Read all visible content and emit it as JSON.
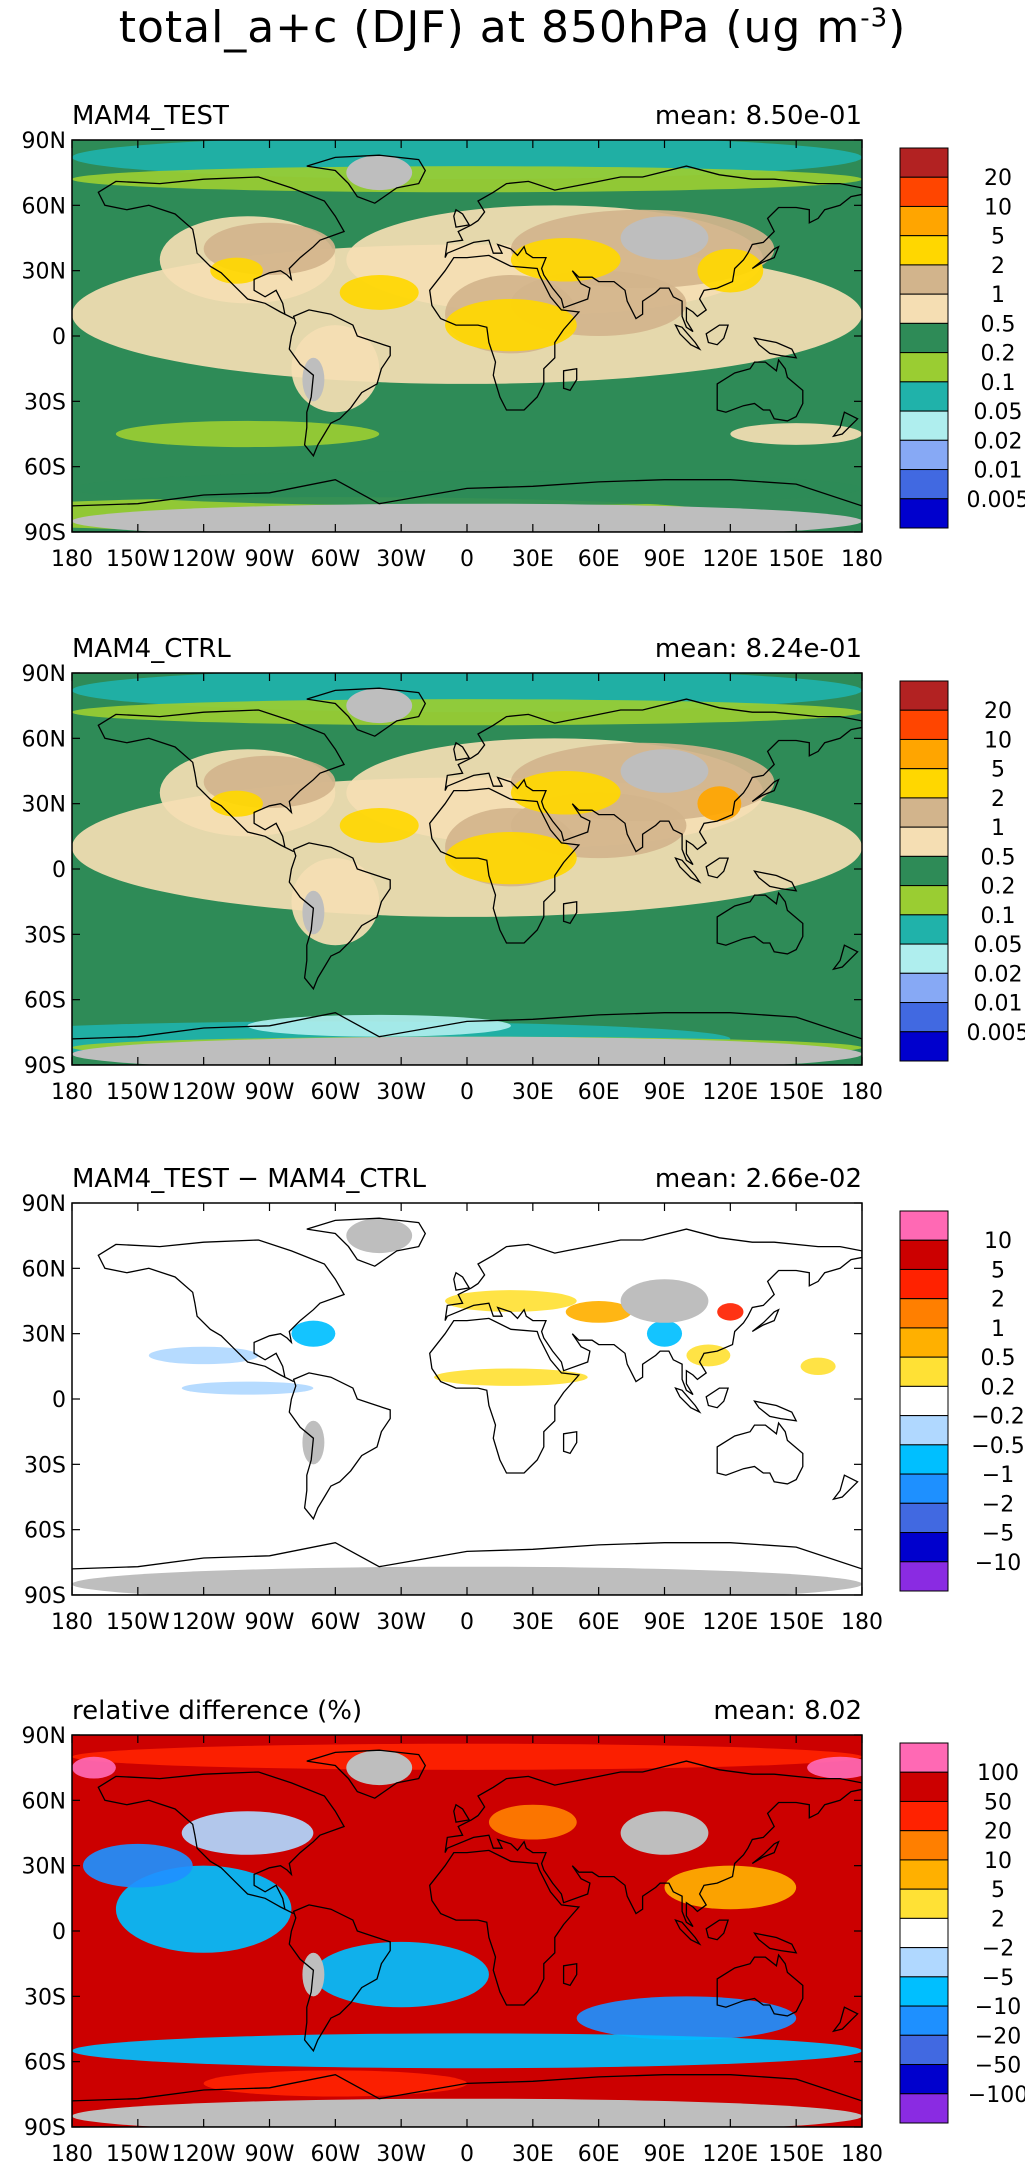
{
  "title": {
    "main": "total_a+c (DJF) at 850hPa (ug m",
    "units_exp": "-3",
    "close": ")"
  },
  "colors": {
    "land_mask": "#bebebe",
    "ocean_default": "#2e8b57",
    "coast": "#000000"
  },
  "chart_data": [
    {
      "type": "heatmap",
      "title": "MAM4_TEST",
      "mean_text": "mean: 8.50e-01",
      "lat_ticks": [
        "90N",
        "60N",
        "30N",
        "0",
        "30S",
        "60S",
        "90S"
      ],
      "lon_ticks": [
        "180",
        "150W",
        "120W",
        "90W",
        "60W",
        "30W",
        "0",
        "30E",
        "60E",
        "90E",
        "120E",
        "150E",
        "180"
      ],
      "colorbar": {
        "labels": [
          "20",
          "10",
          "5",
          "2",
          "1",
          "0.5",
          "0.2",
          "0.1",
          "0.05",
          "0.02",
          "0.01",
          "0.005"
        ],
        "colors": [
          "#b22222",
          "#ff4500",
          "#ffa500",
          "#ffd700",
          "#d2b48c",
          "#f5deb3",
          "#2e8b57",
          "#9acd32",
          "#20b2aa",
          "#afeeee",
          "#87a9f5",
          "#4169e1",
          "#0000cd"
        ]
      }
    },
    {
      "type": "heatmap",
      "title": "MAM4_CTRL",
      "mean_text": "mean: 8.24e-01",
      "lat_ticks": [
        "90N",
        "60N",
        "30N",
        "0",
        "30S",
        "60S",
        "90S"
      ],
      "lon_ticks": [
        "180",
        "150W",
        "120W",
        "90W",
        "60W",
        "30W",
        "0",
        "30E",
        "60E",
        "90E",
        "120E",
        "150E",
        "180"
      ],
      "colorbar": {
        "labels": [
          "20",
          "10",
          "5",
          "2",
          "1",
          "0.5",
          "0.2",
          "0.1",
          "0.05",
          "0.02",
          "0.01",
          "0.005"
        ],
        "colors": [
          "#b22222",
          "#ff4500",
          "#ffa500",
          "#ffd700",
          "#d2b48c",
          "#f5deb3",
          "#2e8b57",
          "#9acd32",
          "#20b2aa",
          "#afeeee",
          "#87a9f5",
          "#4169e1",
          "#0000cd"
        ]
      }
    },
    {
      "type": "heatmap",
      "title": "MAM4_TEST − MAM4_CTRL",
      "mean_text": "mean: 2.66e-02",
      "lat_ticks": [
        "90N",
        "60N",
        "30N",
        "0",
        "30S",
        "60S",
        "90S"
      ],
      "lon_ticks": [
        "180",
        "150W",
        "120W",
        "90W",
        "60W",
        "30W",
        "0",
        "30E",
        "60E",
        "90E",
        "120E",
        "150E",
        "180"
      ],
      "colorbar": {
        "labels": [
          "10",
          "5",
          "2",
          "1",
          "0.5",
          "0.2",
          "−0.2",
          "−0.5",
          "−1",
          "−2",
          "−5",
          "−10"
        ],
        "colors": [
          "#ff69b4",
          "#cc0000",
          "#ff2200",
          "#ff7f00",
          "#ffb000",
          "#ffe135",
          "#ffffff",
          "#b0d8ff",
          "#00bfff",
          "#1e90ff",
          "#4169e1",
          "#0000cd",
          "#8a2be2"
        ]
      }
    },
    {
      "type": "heatmap",
      "title": "relative difference (%)",
      "mean_text": "mean:  8.02",
      "lat_ticks": [
        "90N",
        "60N",
        "30N",
        "0",
        "30S",
        "60S",
        "90S"
      ],
      "lon_ticks": [
        "180",
        "150W",
        "120W",
        "90W",
        "60W",
        "30W",
        "0",
        "30E",
        "60E",
        "90E",
        "120E",
        "150E",
        "180"
      ],
      "colorbar": {
        "labels": [
          "100",
          "50",
          "20",
          "10",
          "5",
          "2",
          "−2",
          "−5",
          "−10",
          "−20",
          "−50",
          "−100"
        ],
        "colors": [
          "#ff69b4",
          "#cc0000",
          "#ff2200",
          "#ff7f00",
          "#ffb000",
          "#ffe135",
          "#ffffff",
          "#b0d8ff",
          "#00bfff",
          "#1e90ff",
          "#4169e1",
          "#0000cd",
          "#8a2be2"
        ]
      }
    }
  ]
}
